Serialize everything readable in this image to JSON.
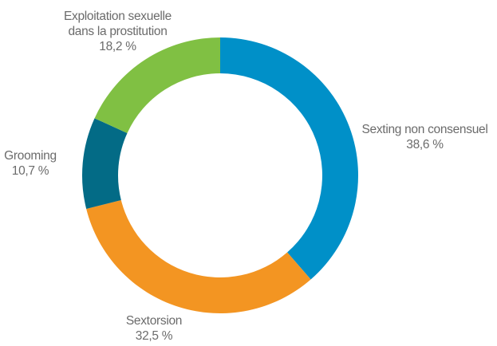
{
  "chart_data": {
    "type": "pie",
    "style": "donut",
    "categories": [
      "Sexting non consensuel",
      "Sextorsion",
      "Grooming",
      "Exploitation sexuelle dans la prostitution"
    ],
    "values": [
      38.6,
      32.5,
      10.7,
      18.2
    ],
    "colors": [
      "#0090c8",
      "#f39522",
      "#036b86",
      "#80c043"
    ],
    "labels": [
      {
        "lines": [
          "Sexting non consensuel"
        ],
        "value": "38,6 %"
      },
      {
        "lines": [
          "Sextorsion"
        ],
        "value": "32,5 %"
      },
      {
        "lines": [
          "Grooming"
        ],
        "value": "10,7 %"
      },
      {
        "lines": [
          "Exploitation sexuelle",
          "dans la prostitution"
        ],
        "value": "18,2 %"
      }
    ]
  }
}
